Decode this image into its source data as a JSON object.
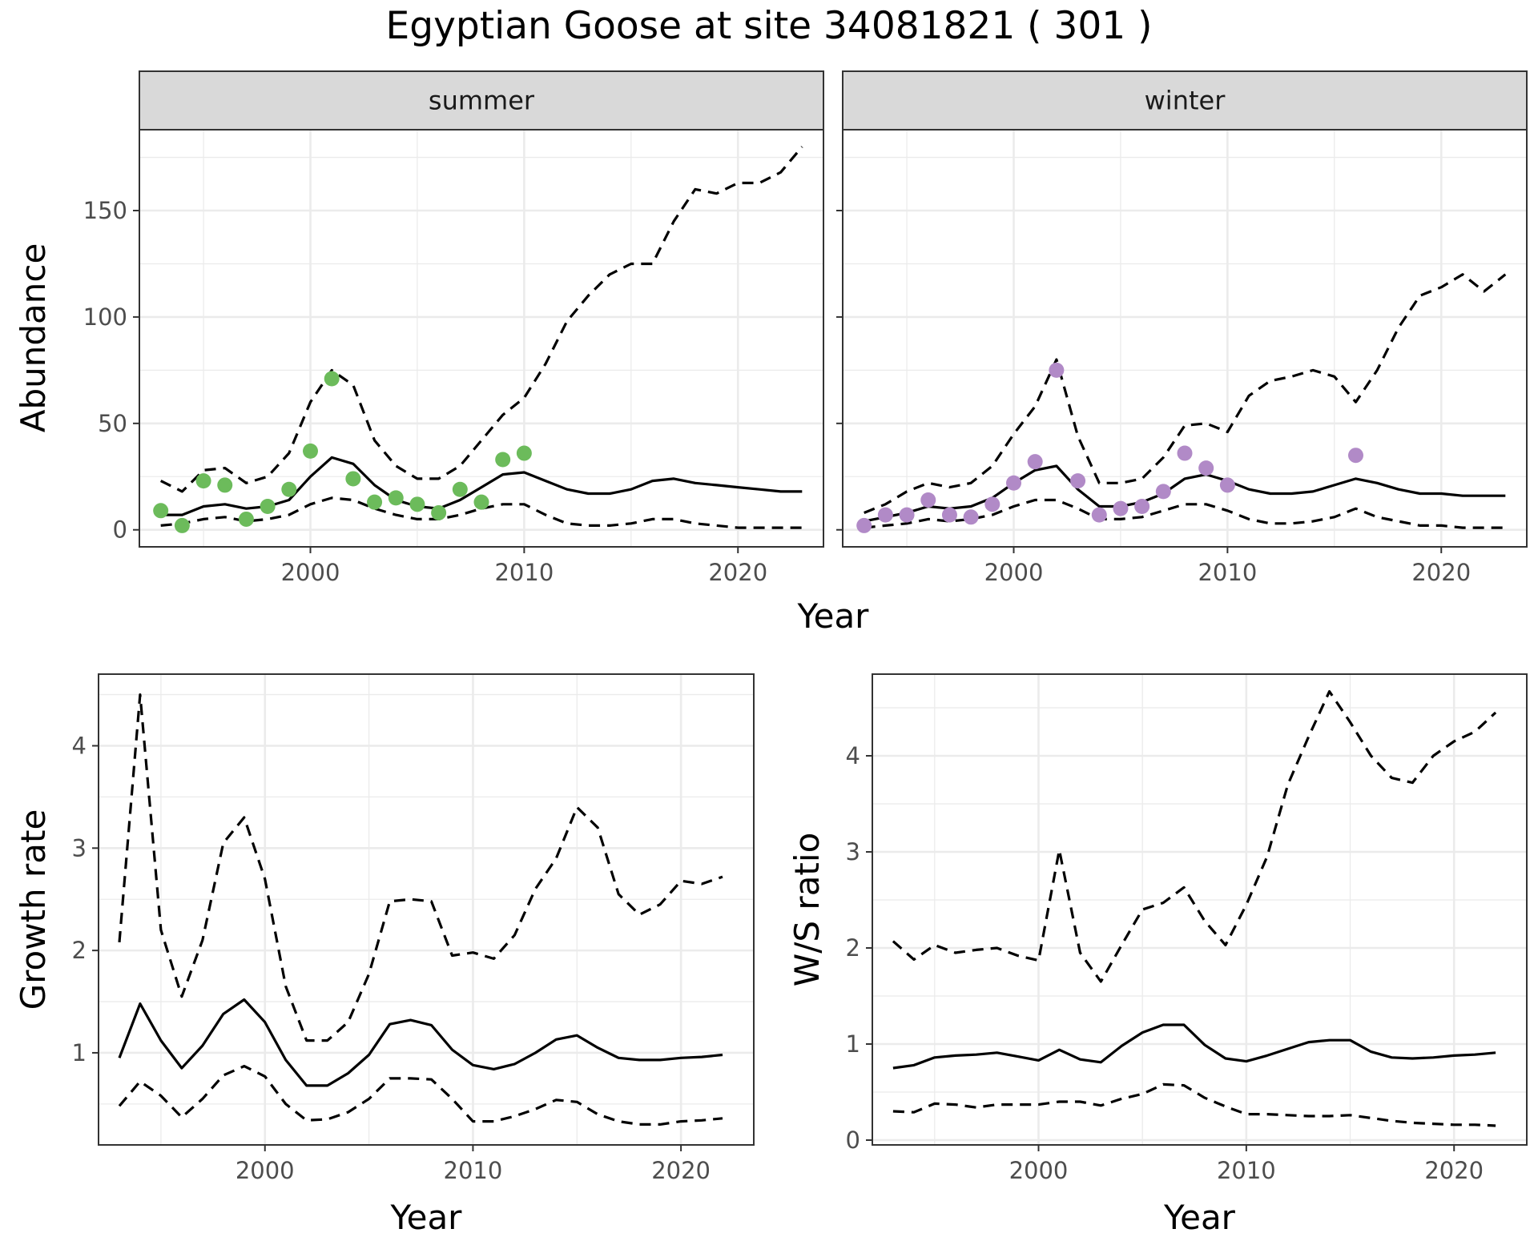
{
  "title": "Egyptian Goose at site 34081821 ( 301 )",
  "colors": {
    "summer_points": "#6cbb5b",
    "winter_points": "#b18ac7",
    "line": "#000000",
    "grid": "#ebebeb",
    "strip": "#d9d9d9"
  },
  "chart_data": [
    {
      "type": "line",
      "facet": "summer",
      "xlabel": "Year",
      "ylabel": "Abundance",
      "xlim": [
        1992,
        2024
      ],
      "ylim": [
        -8,
        188
      ],
      "xticks": [
        2000,
        2010,
        2020
      ],
      "yticks": [
        0,
        50,
        100,
        150
      ],
      "grid": true,
      "x": [
        1993,
        1994,
        1995,
        1996,
        1997,
        1998,
        1999,
        2000,
        2001,
        2002,
        2003,
        2004,
        2005,
        2006,
        2007,
        2008,
        2009,
        2010,
        2011,
        2012,
        2013,
        2014,
        2015,
        2016,
        2017,
        2018,
        2019,
        2020,
        2021,
        2022,
        2023
      ],
      "series": [
        {
          "role": "fit",
          "style": "solid",
          "values": [
            7,
            7,
            11,
            12,
            10,
            11,
            14,
            25,
            34,
            31,
            21,
            14,
            11,
            10,
            14,
            20,
            26,
            27,
            23,
            19,
            17,
            17,
            19,
            23,
            24,
            22,
            21,
            20,
            19,
            18,
            18
          ]
        },
        {
          "role": "upper",
          "style": "dashed",
          "values": [
            23,
            18,
            28,
            29,
            22,
            25,
            36,
            60,
            75,
            68,
            42,
            30,
            24,
            24,
            30,
            42,
            54,
            62,
            78,
            98,
            110,
            120,
            125,
            125,
            145,
            160,
            158,
            163,
            163,
            168,
            180
          ]
        },
        {
          "role": "lower",
          "style": "dashed",
          "values": [
            2,
            3,
            5,
            6,
            4,
            5,
            7,
            12,
            15,
            14,
            10,
            7,
            5,
            5,
            7,
            10,
            12,
            12,
            7,
            3,
            2,
            2,
            3,
            5,
            5,
            3,
            2,
            1,
            1,
            1,
            1
          ]
        }
      ],
      "points": {
        "x": [
          1993,
          1994,
          1995,
          1996,
          1997,
          1998,
          1999,
          2000,
          2001,
          2002,
          2003,
          2004,
          2005,
          2006,
          2007,
          2008,
          2009,
          2010
        ],
        "y": [
          9,
          2,
          23,
          21,
          5,
          11,
          19,
          37,
          71,
          24,
          13,
          15,
          12,
          8,
          19,
          13,
          33,
          36
        ]
      }
    },
    {
      "type": "line",
      "facet": "winter",
      "xlabel": "Year",
      "ylabel": "Abundance",
      "xlim": [
        1992,
        2024
      ],
      "ylim": [
        -8,
        188
      ],
      "xticks": [
        2000,
        2010,
        2020
      ],
      "yticks": [
        0,
        50,
        100,
        150
      ],
      "grid": true,
      "x": [
        1993,
        1994,
        1995,
        1996,
        1997,
        1998,
        1999,
        2000,
        2001,
        2002,
        2003,
        2004,
        2005,
        2006,
        2007,
        2008,
        2009,
        2010,
        2011,
        2012,
        2013,
        2014,
        2015,
        2016,
        2017,
        2018,
        2019,
        2020,
        2021,
        2022,
        2023
      ],
      "series": [
        {
          "role": "fit",
          "style": "solid",
          "values": [
            4,
            6,
            8,
            11,
            10,
            11,
            15,
            22,
            28,
            30,
            19,
            11,
            11,
            13,
            17,
            24,
            26,
            23,
            19,
            17,
            17,
            18,
            21,
            24,
            22,
            19,
            17,
            17,
            16,
            16,
            16
          ]
        },
        {
          "role": "upper",
          "style": "dashed",
          "values": [
            8,
            12,
            18,
            22,
            20,
            22,
            30,
            45,
            58,
            80,
            44,
            22,
            22,
            24,
            34,
            49,
            50,
            46,
            63,
            70,
            72,
            75,
            72,
            60,
            75,
            95,
            110,
            114,
            120,
            112,
            120
          ]
        },
        {
          "role": "lower",
          "style": "dashed",
          "values": [
            1,
            2,
            3,
            5,
            4,
            5,
            7,
            11,
            14,
            14,
            10,
            5,
            5,
            6,
            9,
            12,
            12,
            9,
            5,
            3,
            3,
            4,
            6,
            10,
            6,
            4,
            2,
            2,
            1,
            1,
            1
          ]
        }
      ],
      "points": {
        "x": [
          1993,
          1994,
          1995,
          1996,
          1997,
          1998,
          1999,
          2000,
          2001,
          2002,
          2003,
          2004,
          2005,
          2006,
          2007,
          2008,
          2009,
          2010,
          2016
        ],
        "y": [
          2,
          7,
          7,
          14,
          7,
          6,
          12,
          22,
          32,
          75,
          23,
          7,
          10,
          11,
          18,
          36,
          29,
          21,
          35
        ]
      }
    },
    {
      "type": "line",
      "facet": "",
      "xlabel": "Year",
      "ylabel": "Growth rate",
      "xlim": [
        1992,
        2023.5
      ],
      "ylim": [
        0.1,
        4.7
      ],
      "xticks": [
        2000,
        2010,
        2020
      ],
      "yticks": [
        1,
        2,
        3,
        4
      ],
      "grid": true,
      "x": [
        1993,
        1994,
        1995,
        1996,
        1997,
        1998,
        1999,
        2000,
        2001,
        2002,
        2003,
        2004,
        2005,
        2006,
        2007,
        2008,
        2009,
        2010,
        2011,
        2012,
        2013,
        2014,
        2015,
        2016,
        2017,
        2018,
        2019,
        2020,
        2021,
        2022
      ],
      "series": [
        {
          "role": "fit",
          "style": "solid",
          "values": [
            0.95,
            1.48,
            1.12,
            0.85,
            1.07,
            1.38,
            1.52,
            1.3,
            0.93,
            0.68,
            0.68,
            0.8,
            0.98,
            1.28,
            1.32,
            1.27,
            1.03,
            0.88,
            0.84,
            0.89,
            1.0,
            1.13,
            1.17,
            1.05,
            0.95,
            0.93,
            0.93,
            0.95,
            0.96,
            0.98
          ]
        },
        {
          "role": "upper",
          "style": "dashed",
          "values": [
            2.08,
            4.5,
            2.2,
            1.55,
            2.1,
            3.05,
            3.3,
            2.7,
            1.65,
            1.12,
            1.12,
            1.3,
            1.77,
            2.48,
            2.5,
            2.48,
            1.95,
            1.98,
            1.92,
            2.15,
            2.6,
            2.9,
            3.4,
            3.2,
            2.55,
            2.35,
            2.45,
            2.68,
            2.65,
            2.72
          ]
        },
        {
          "role": "lower",
          "style": "dashed",
          "values": [
            0.48,
            0.72,
            0.58,
            0.37,
            0.55,
            0.78,
            0.87,
            0.77,
            0.5,
            0.34,
            0.35,
            0.42,
            0.55,
            0.75,
            0.75,
            0.74,
            0.55,
            0.33,
            0.33,
            0.38,
            0.45,
            0.54,
            0.52,
            0.4,
            0.33,
            0.3,
            0.3,
            0.33,
            0.34,
            0.36
          ]
        }
      ]
    },
    {
      "type": "line",
      "facet": "",
      "xlabel": "Year",
      "ylabel": "W/S ratio",
      "xlim": [
        1992,
        2023.5
      ],
      "ylim": [
        -0.05,
        4.85
      ],
      "xticks": [
        2000,
        2010,
        2020
      ],
      "yticks": [
        0,
        1,
        2,
        3,
        4
      ],
      "grid": true,
      "x": [
        1993,
        1994,
        1995,
        1996,
        1997,
        1998,
        1999,
        2000,
        2001,
        2002,
        2003,
        2004,
        2005,
        2006,
        2007,
        2008,
        2009,
        2010,
        2011,
        2012,
        2013,
        2014,
        2015,
        2016,
        2017,
        2018,
        2019,
        2020,
        2021,
        2022
      ],
      "series": [
        {
          "role": "fit",
          "style": "solid",
          "values": [
            0.75,
            0.78,
            0.86,
            0.88,
            0.89,
            0.91,
            0.87,
            0.83,
            0.94,
            0.84,
            0.81,
            0.98,
            1.12,
            1.2,
            1.2,
            0.99,
            0.85,
            0.82,
            0.88,
            0.95,
            1.02,
            1.04,
            1.04,
            0.92,
            0.86,
            0.85,
            0.86,
            0.88,
            0.89,
            0.91
          ]
        },
        {
          "role": "upper",
          "style": "dashed",
          "values": [
            2.07,
            1.88,
            2.03,
            1.95,
            1.98,
            2.0,
            1.92,
            1.87,
            3.02,
            1.95,
            1.65,
            2.03,
            2.4,
            2.47,
            2.63,
            2.28,
            2.03,
            2.45,
            2.95,
            3.7,
            4.2,
            4.67,
            4.35,
            4.0,
            3.77,
            3.72,
            4.0,
            4.15,
            4.25,
            4.45
          ]
        },
        {
          "role": "lower",
          "style": "dashed",
          "values": [
            0.3,
            0.29,
            0.38,
            0.37,
            0.34,
            0.37,
            0.37,
            0.37,
            0.4,
            0.4,
            0.36,
            0.43,
            0.48,
            0.58,
            0.57,
            0.44,
            0.35,
            0.27,
            0.27,
            0.26,
            0.25,
            0.25,
            0.26,
            0.23,
            0.2,
            0.18,
            0.17,
            0.16,
            0.16,
            0.15
          ]
        }
      ]
    }
  ]
}
